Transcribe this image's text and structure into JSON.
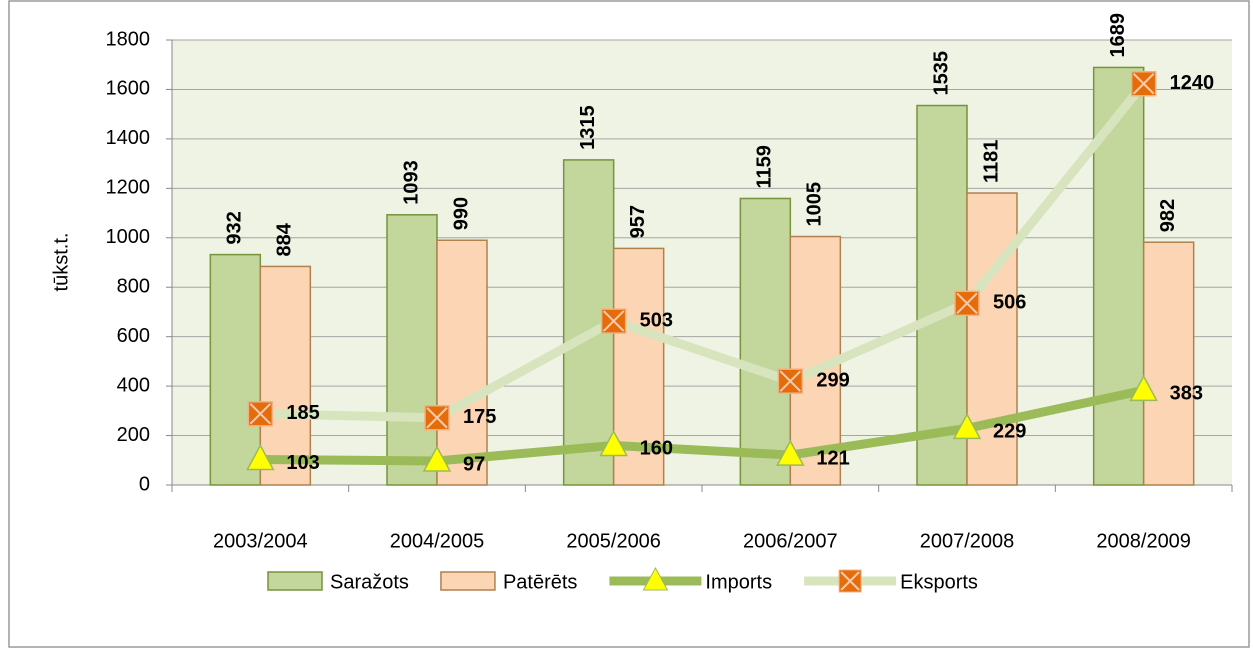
{
  "chart_data": {
    "type": "bar",
    "y_label": "tūkst.t.",
    "categories": [
      "2003/2004",
      "2004/2005",
      "2005/2006",
      "2006/2007",
      "2007/2008",
      "2008/2009"
    ],
    "series": [
      {
        "name": "Saražots",
        "type": "bar",
        "color": "#c3d69b",
        "values": [
          932,
          1093,
          1315,
          1159,
          1535,
          1689
        ]
      },
      {
        "name": "Patērēts",
        "type": "bar",
        "color": "#fcd5b5",
        "values": [
          884,
          990,
          957,
          1005,
          1181,
          982
        ]
      },
      {
        "name": "Imports",
        "type": "line",
        "color": "#9bbb59",
        "marker_color": "#ffff00",
        "values": [
          103,
          97,
          160,
          121,
          229,
          383
        ]
      },
      {
        "name": "Eksports",
        "type": "line",
        "color": "#d7e4bd",
        "marker_color": "#e46c0a",
        "values": [
          185,
          175,
          503,
          299,
          506,
          1240
        ]
      }
    ],
    "stacked_lines": true,
    "ylim": [
      0,
      1800
    ],
    "yticks": [
      0,
      200,
      400,
      600,
      800,
      1000,
      1200,
      1400,
      1600,
      1800
    ],
    "grid": true,
    "legend": "bottom"
  }
}
